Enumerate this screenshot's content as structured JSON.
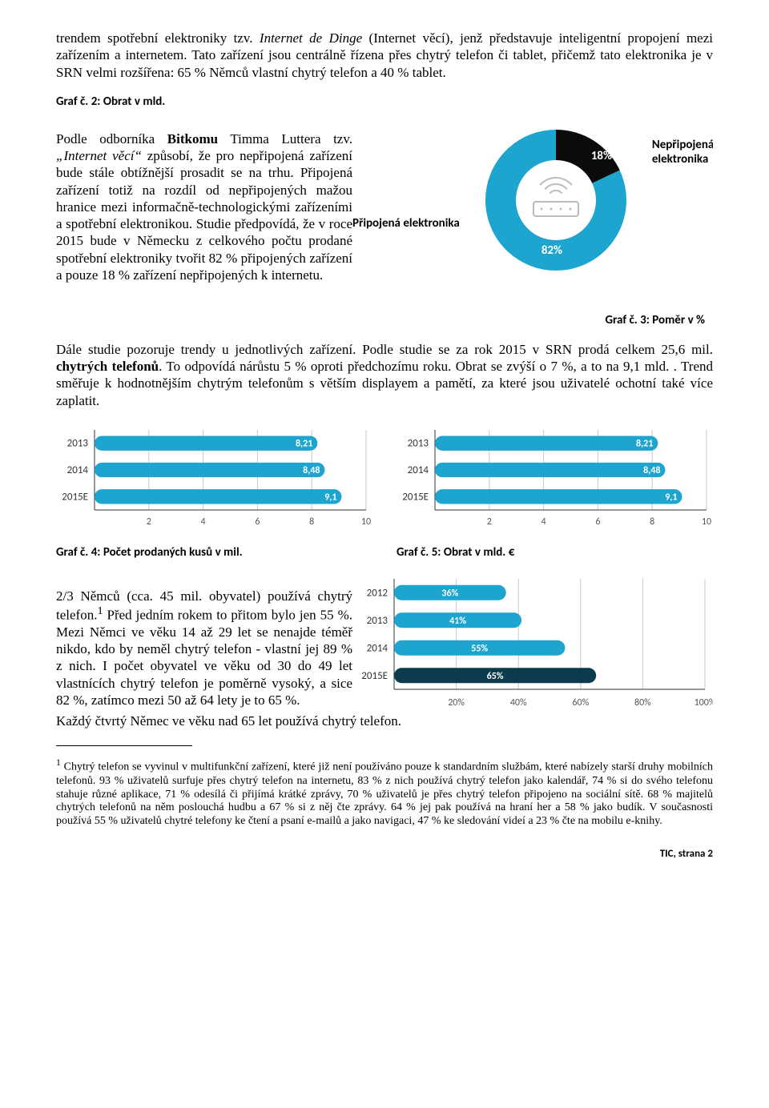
{
  "colors": {
    "bar_fill": "#1da5d0",
    "bar_dark": "#0b3b4c",
    "grid": "#c8c8c8",
    "baseline": "#333333",
    "donut_main": "#1da5d0",
    "donut_slice": "#0b0b0b",
    "router_line": "#bcbcbc"
  },
  "intro": {
    "p1_a": "trendem spotřební elektroniky tzv. ",
    "p1_italic": "Internet de Dinge",
    "p1_b": " (Internet věcí), jenž představuje inteligentní propojení mezi zařízením a internetem. Tato zařízení jsou centrálně řízena přes chytrý telefon či tablet, přičemž tato elektronika je v SRN velmi rozšířena: 65 % Němců vlastní chytrý telefon a 40 % tablet."
  },
  "caption_graf2": "Graf č. 2: Obrat v mld.",
  "para2": {
    "a": "Podle odborníka ",
    "bold1": "Bitkomu",
    "b": " Timma Luttera tzv. ",
    "italic1": "„Internet věcí“",
    "c": " způsobí, že pro nepřipojená zařízení bude stále obtížnější prosadit se na trhu. Připojená zařízení totiž na rozdíl od nepřipojených mažou hranice mezi informačně-technologickými zařízeními a spotřební elektronikou. Studie předpovídá, že v roce 2015 bude v Německu z celkového počtu prodané spotřební elektroniky tvořit 82 % připojených zařízení a pouze 18 % zařízení nepřipojených k internetu."
  },
  "donut": {
    "left_label": "Připojená elektronika",
    "right_label_a": "Nepřipojená",
    "right_label_b": "elektronika",
    "value_main": 82,
    "value_slice": 18,
    "label_main": "82%",
    "label_slice": "18%",
    "caption": "Graf č. 3: Poměr v %"
  },
  "para3": {
    "a": "Dále studie pozoruje trendy u jednotlivých zařízení. Podle studie se za rok 2015 v SRN prodá celkem 25,6 mil. ",
    "bold": "chytrých telefonů",
    "b": ". To odpovídá nárůstu 5 % oproti předchozímu roku. Obrat se zvýší o 7 %, a to na 9,1 mld. . Trend směřuje k hodnotnějším chytrým telefonům s větším displayem a pamětí, za které jsou uživatelé ochotní také více zaplatit."
  },
  "barChartA": {
    "years": [
      "2013",
      "2014",
      "2015E"
    ],
    "values": [
      8.21,
      8.48,
      9.1
    ],
    "labels": [
      "8,21",
      "8,48",
      "9,1"
    ],
    "x_ticks": [
      2,
      4,
      6,
      8,
      10
    ],
    "x_max": 10
  },
  "barChartB": {
    "years": [
      "2013",
      "2014",
      "2015E"
    ],
    "values": [
      8.21,
      8.48,
      9.1
    ],
    "labels": [
      "8,21",
      "8,48",
      "9,1"
    ],
    "x_ticks": [
      2,
      4,
      6,
      8,
      10
    ],
    "x_max": 10
  },
  "caption_graf4": "Graf č. 4: Počet prodaných kusů v mil.",
  "caption_graf5": "Graf č. 5: Obrat v mld. €",
  "para4": {
    "a": "2/3 Němců (cca. 45 mil. obyvatel) používá chytrý telefon.",
    "sup": "1",
    "b": " Před jedním rokem to přitom bylo jen 55 %. Mezi Němci ve věku 14 až 29 let se nenajde téměř nikdo, kdo by neměl chytrý telefon - vlastní jej 89 % z nich. I počet obyvatel ve věku od 30 do 49 let vlastnících chytrý telefon je poměrně vysoký, a sice 82 %, zatímco mezi 50 až 64 lety je to 65 %. "
  },
  "para4_tail": "Každý čtvrtý Němec ve věku nad 65 let používá chytrý telefon.",
  "pctChart": {
    "years": [
      "2012",
      "2013",
      "2014",
      "2015E"
    ],
    "values": [
      36,
      41,
      55,
      65
    ],
    "labels": [
      "36%",
      "41%",
      "55%",
      "65%"
    ],
    "x_ticks": [
      20,
      40,
      60,
      80,
      100
    ],
    "x_max": 100
  },
  "footnote": {
    "sup": "1",
    "text": " Chytrý telefon se vyvinul v multifunkční zařízení, které již není používáno pouze k standardním službám, které nabízely starší druhy mobilních telefonů. 93 % uživatelů surfuje přes chytrý telefon na internetu, 83 % z nich používá chytrý telefon jako kalendář, 74 % si do svého telefonu stahuje různé aplikace, 71 % odesílá či přijímá krátké zprávy, 70 % uživatelů je přes chytrý telefon připojeno na sociální sítě. 68 % majitelů chytrých telefonů na něm poslouchá hudbu a 67 % si z něj čte zprávy. 64 % jej pak používá na hraní her a 58 % jako budík. V současnosti používá 55 % uživatelů chytré telefony ke čtení a psaní e-mailů a jako navigaci, 47 % ke sledování videí a 23 % čte na mobilu e-knihy."
  },
  "footer": "TIC, strana 2"
}
